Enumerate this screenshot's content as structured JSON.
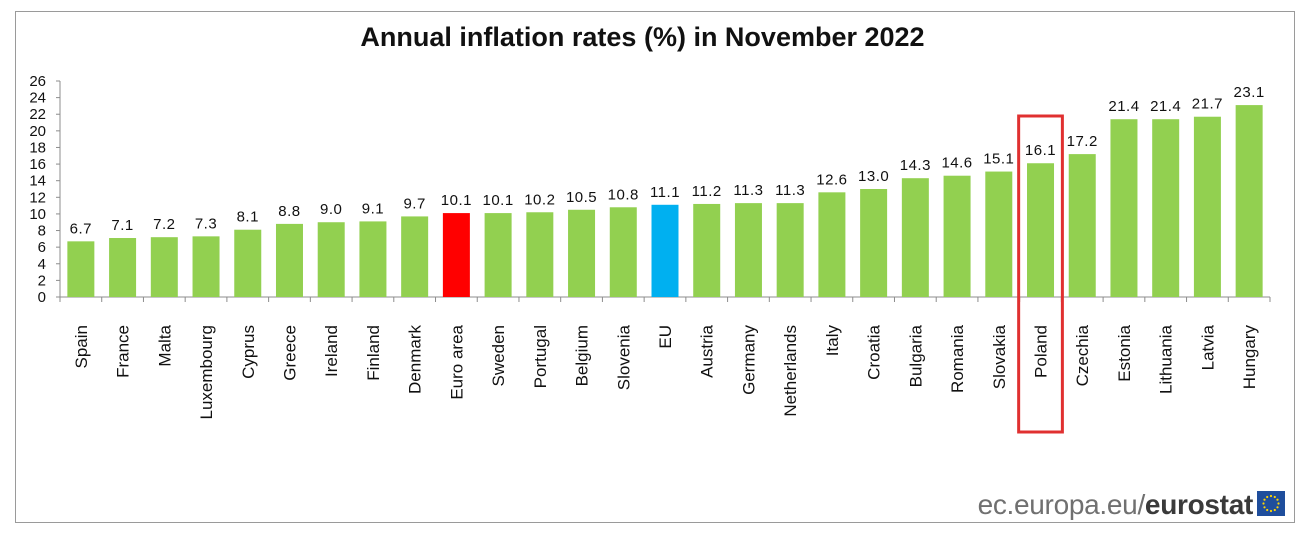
{
  "chart_data": {
    "type": "bar",
    "title": "Annual inflation rates (%) in November 2022",
    "categories": [
      "Spain",
      "France",
      "Malta",
      "Luxembourg",
      "Cyprus",
      "Greece",
      "Ireland",
      "Finland",
      "Denmark",
      "Euro area",
      "Sweden",
      "Portugal",
      "Belgium",
      "Slovenia",
      "EU",
      "Austria",
      "Germany",
      "Netherlands",
      "Italy",
      "Croatia",
      "Bulgaria",
      "Romania",
      "Slovakia",
      "Poland",
      "Czechia",
      "Estonia",
      "Lithuania",
      "Latvia",
      "Hungary"
    ],
    "values": [
      6.7,
      7.1,
      7.2,
      7.3,
      8.1,
      8.8,
      9.0,
      9.1,
      9.7,
      10.1,
      10.1,
      10.2,
      10.5,
      10.8,
      11.1,
      11.2,
      11.3,
      11.3,
      12.6,
      13.0,
      14.3,
      14.6,
      15.1,
      16.1,
      17.2,
      21.4,
      21.4,
      21.7,
      23.1
    ],
    "value_labels": [
      "6.7",
      "7.1",
      "7.2",
      "7.3",
      "8.1",
      "8.8",
      "9.0",
      "9.1",
      "9.7",
      "10.1",
      "10.1",
      "10.2",
      "10.5",
      "10.8",
      "11.1",
      "11.2",
      "11.3",
      "11.3",
      "12.6",
      "13.0",
      "14.3",
      "14.6",
      "15.1",
      "16.1",
      "17.2",
      "21.4",
      "21.4",
      "21.7",
      "23.1"
    ],
    "y_ticks": [
      "0",
      "2",
      "4",
      "6",
      "8",
      "10",
      "12",
      "14",
      "16",
      "18",
      "20",
      "22",
      "24",
      "26"
    ],
    "ylim": [
      0,
      26
    ],
    "grid": false,
    "colors": {
      "default": "#92D050",
      "Euro area": "#FF0000",
      "EU": "#00B0F0",
      "highlight_box": "#E03030"
    },
    "highlight": "Poland"
  },
  "footer": {
    "site": "ec.europa.eu",
    "separator": "/",
    "brand": "eurostat"
  }
}
